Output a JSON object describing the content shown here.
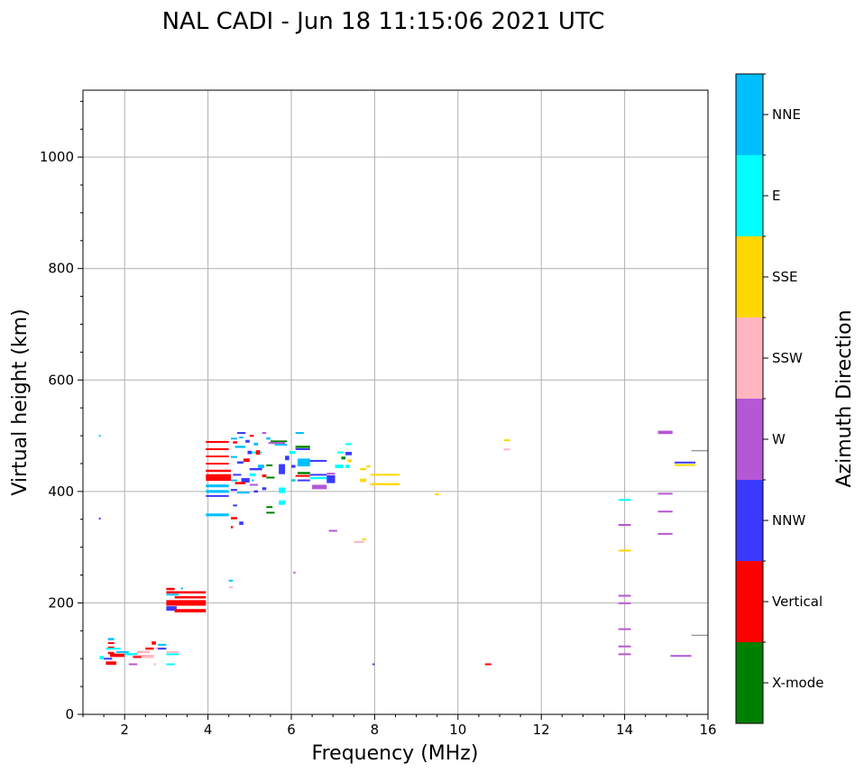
{
  "chart_data": {
    "type": "scatter",
    "title": "NAL CADI - Jun 18 11:15:06 2021 UTC",
    "xlabel": "Frequency (MHz)",
    "ylabel": "Virtual height (km)",
    "xlim": [
      1,
      16
    ],
    "ylim": [
      0,
      1120
    ],
    "xticks": [
      "2",
      "4",
      "6",
      "8",
      "10",
      "12",
      "14",
      "16"
    ],
    "yticks": [
      "0",
      "200",
      "400",
      "600",
      "800",
      "1000"
    ],
    "grid": true,
    "colorbar": {
      "label": "Azimuth Direction",
      "categories": [
        "X-mode",
        "Vertical",
        "NNW",
        "W",
        "SSW",
        "SSE",
        "E",
        "NNE"
      ],
      "colors": [
        "#008000",
        "#ff0000",
        "#3a3aff",
        "#b657d6",
        "#ffb6c1",
        "#ffd700",
        "#00ffff",
        "#00bfff"
      ]
    },
    "segments_format": "[freq_start_MHz, freq_end_MHz, height_km, height_span_km, category_index]",
    "segments": [
      [
        1.38,
        1.42,
        500,
        3,
        7
      ],
      [
        1.38,
        1.42,
        352,
        2,
        2
      ],
      [
        1.4,
        1.5,
        102,
        6,
        6
      ],
      [
        1.5,
        1.7,
        100,
        3,
        2
      ],
      [
        1.55,
        1.8,
        92,
        6,
        1
      ],
      [
        1.6,
        1.75,
        110,
        4,
        1
      ],
      [
        1.6,
        1.75,
        120,
        3,
        1
      ],
      [
        1.6,
        1.75,
        135,
        4,
        7
      ],
      [
        1.6,
        1.75,
        128,
        3,
        1
      ],
      [
        1.55,
        1.9,
        118,
        3,
        6
      ],
      [
        1.65,
        2.0,
        106,
        6,
        1
      ],
      [
        1.8,
        2.1,
        112,
        3,
        7
      ],
      [
        2.0,
        2.3,
        108,
        4,
        6
      ],
      [
        2.2,
        2.7,
        104,
        6,
        4
      ],
      [
        2.3,
        2.6,
        112,
        4,
        4
      ],
      [
        2.5,
        2.7,
        118,
        4,
        1
      ],
      [
        2.65,
        2.75,
        128,
        6,
        1
      ],
      [
        2.75,
        2.95,
        118,
        4,
        4
      ],
      [
        2.8,
        3.0,
        125,
        3,
        7
      ],
      [
        2.8,
        3.0,
        118,
        3,
        2
      ],
      [
        3.0,
        3.3,
        108,
        3,
        6
      ],
      [
        3.0,
        3.3,
        112,
        3,
        4
      ],
      [
        3.0,
        3.2,
        90,
        3,
        6
      ],
      [
        2.1,
        2.3,
        90,
        3,
        3
      ],
      [
        2.7,
        2.75,
        90,
        4,
        4
      ],
      [
        2.2,
        2.4,
        103,
        3,
        1
      ],
      [
        3.0,
        3.95,
        219,
        4,
        1
      ],
      [
        3.0,
        3.2,
        225,
        4,
        1
      ],
      [
        3.0,
        3.3,
        215,
        3,
        7
      ],
      [
        3.2,
        3.95,
        210,
        4,
        1
      ],
      [
        3.0,
        3.95,
        200,
        10,
        1
      ],
      [
        3.0,
        3.25,
        190,
        8,
        2
      ],
      [
        3.2,
        3.95,
        186,
        6,
        1
      ],
      [
        3.35,
        3.4,
        226,
        3,
        7
      ],
      [
        4.5,
        4.6,
        240,
        3,
        7
      ],
      [
        4.5,
        4.6,
        228,
        3,
        4
      ],
      [
        3.95,
        4.5,
        489,
        3,
        1
      ],
      [
        3.95,
        4.5,
        476,
        3,
        1
      ],
      [
        3.95,
        4.5,
        463,
        3,
        1
      ],
      [
        3.95,
        4.5,
        450,
        3,
        1
      ],
      [
        3.95,
        4.55,
        437,
        4,
        1
      ],
      [
        3.95,
        4.55,
        425,
        12,
        1
      ],
      [
        3.95,
        4.5,
        410,
        5,
        7
      ],
      [
        3.95,
        4.5,
        400,
        5,
        7
      ],
      [
        3.95,
        4.5,
        392,
        3,
        2
      ],
      [
        3.95,
        4.5,
        358,
        5,
        7
      ],
      [
        4.55,
        4.7,
        495,
        3,
        7
      ],
      [
        4.7,
        4.9,
        505,
        3,
        2
      ],
      [
        4.75,
        4.85,
        497,
        3,
        7
      ],
      [
        4.6,
        4.7,
        488,
        4,
        1
      ],
      [
        4.65,
        4.9,
        480,
        4,
        7
      ],
      [
        4.9,
        5.0,
        490,
        5,
        2
      ],
      [
        5.0,
        5.1,
        500,
        3,
        1
      ],
      [
        5.0,
        5.3,
        470,
        3,
        6
      ],
      [
        5.1,
        5.2,
        485,
        5,
        7
      ],
      [
        5.3,
        5.4,
        505,
        3,
        3
      ],
      [
        5.4,
        5.5,
        495,
        4,
        7
      ],
      [
        5.5,
        5.9,
        490,
        3,
        0
      ],
      [
        5.45,
        5.85,
        487,
        3,
        3
      ],
      [
        5.6,
        5.9,
        484,
        3,
        7
      ],
      [
        5.15,
        5.25,
        470,
        8,
        1
      ],
      [
        4.55,
        4.7,
        462,
        3,
        7
      ],
      [
        4.7,
        4.85,
        452,
        4,
        2
      ],
      [
        4.85,
        5.0,
        456,
        6,
        1
      ],
      [
        5.0,
        5.3,
        440,
        4,
        2
      ],
      [
        5.2,
        5.35,
        445,
        6,
        7
      ],
      [
        5.3,
        5.4,
        428,
        5,
        1
      ],
      [
        4.6,
        4.8,
        430,
        3,
        2
      ],
      [
        4.55,
        4.7,
        420,
        3,
        7
      ],
      [
        4.8,
        5.0,
        420,
        8,
        2
      ],
      [
        4.65,
        4.9,
        415,
        4,
        1
      ],
      [
        5.0,
        5.2,
        412,
        3,
        3
      ],
      [
        5.3,
        5.4,
        405,
        5,
        2
      ],
      [
        4.55,
        4.7,
        403,
        3,
        2
      ],
      [
        4.7,
        5.0,
        398,
        3,
        7
      ],
      [
        4.6,
        4.7,
        375,
        3,
        2
      ],
      [
        4.55,
        4.7,
        352,
        4,
        1
      ],
      [
        4.75,
        4.85,
        343,
        6,
        2
      ],
      [
        4.55,
        4.6,
        336,
        4,
        1
      ],
      [
        5.05,
        5.1,
        420,
        3,
        7
      ],
      [
        5.4,
        5.55,
        447,
        3,
        0
      ],
      [
        5.4,
        5.6,
        425,
        3,
        0
      ],
      [
        5.4,
        5.55,
        372,
        3,
        0
      ],
      [
        5.4,
        5.6,
        362,
        3,
        0
      ],
      [
        5.7,
        5.85,
        440,
        18,
        2
      ],
      [
        5.7,
        5.85,
        402,
        10,
        6
      ],
      [
        5.7,
        5.85,
        380,
        8,
        6
      ],
      [
        5.85,
        5.95,
        460,
        8,
        2
      ],
      [
        5.95,
        6.1,
        470,
        5,
        6
      ],
      [
        6.0,
        6.1,
        445,
        5,
        2
      ],
      [
        6.0,
        6.1,
        420,
        4,
        7
      ],
      [
        6.1,
        6.3,
        505,
        3,
        7
      ],
      [
        6.1,
        6.45,
        480,
        4,
        0
      ],
      [
        6.1,
        6.45,
        476,
        3,
        2
      ],
      [
        6.15,
        6.45,
        452,
        14,
        7
      ],
      [
        6.15,
        6.45,
        433,
        4,
        0
      ],
      [
        6.1,
        6.45,
        428,
        3,
        1
      ],
      [
        6.15,
        6.45,
        420,
        3,
        2
      ],
      [
        6.45,
        6.85,
        455,
        3,
        2
      ],
      [
        6.45,
        6.85,
        430,
        3,
        2
      ],
      [
        6.45,
        6.85,
        424,
        4,
        6
      ],
      [
        6.5,
        6.85,
        408,
        8,
        3
      ],
      [
        6.85,
        7.05,
        422,
        14,
        2
      ],
      [
        6.85,
        7.05,
        432,
        3,
        3
      ],
      [
        7.05,
        7.25,
        445,
        6,
        6
      ],
      [
        7.1,
        7.25,
        470,
        3,
        6
      ],
      [
        7.2,
        7.3,
        460,
        5,
        0
      ],
      [
        7.3,
        7.45,
        485,
        3,
        6
      ],
      [
        7.3,
        7.45,
        468,
        6,
        2
      ],
      [
        7.35,
        7.45,
        455,
        5,
        5
      ],
      [
        7.3,
        7.4,
        445,
        6,
        6
      ],
      [
        7.65,
        7.8,
        440,
        4,
        5
      ],
      [
        7.65,
        7.8,
        420,
        6,
        5
      ],
      [
        7.8,
        7.9,
        445,
        3,
        5
      ],
      [
        7.9,
        8.6,
        430,
        3,
        5
      ],
      [
        7.9,
        8.6,
        413,
        4,
        5
      ],
      [
        5.1,
        5.2,
        400,
        4,
        2
      ],
      [
        5.0,
        5.15,
        430,
        5,
        6
      ],
      [
        4.95,
        5.05,
        470,
        6,
        2
      ],
      [
        6.05,
        6.1,
        255,
        2,
        3
      ],
      [
        6.9,
        7.1,
        330,
        2,
        3
      ],
      [
        7.5,
        7.75,
        310,
        2,
        4
      ],
      [
        7.7,
        7.8,
        314,
        3,
        5
      ],
      [
        7.95,
        8.0,
        90,
        3,
        2
      ],
      [
        9.45,
        9.55,
        395,
        3,
        5
      ],
      [
        10.65,
        10.8,
        90,
        3,
        1
      ],
      [
        11.1,
        11.25,
        492,
        3,
        5
      ],
      [
        11.1,
        11.25,
        476,
        2,
        4
      ],
      [
        13.85,
        14.15,
        385,
        3,
        6
      ],
      [
        13.85,
        14.15,
        340,
        3,
        3
      ],
      [
        13.85,
        14.15,
        294,
        3,
        5
      ],
      [
        13.85,
        14.15,
        213,
        3,
        3
      ],
      [
        13.85,
        14.15,
        200,
        2,
        3
      ],
      [
        13.85,
        14.15,
        153,
        3,
        3
      ],
      [
        13.85,
        14.15,
        122,
        3,
        3
      ],
      [
        13.85,
        14.15,
        108,
        3,
        3
      ],
      [
        14.8,
        15.15,
        506,
        6,
        3
      ],
      [
        14.8,
        15.15,
        396,
        3,
        3
      ],
      [
        14.8,
        15.15,
        364,
        3,
        3
      ],
      [
        14.8,
        15.15,
        324,
        3,
        3
      ],
      [
        15.2,
        15.7,
        452,
        3,
        2
      ],
      [
        15.2,
        15.7,
        448,
        2,
        5
      ],
      [
        15.1,
        15.6,
        105,
        3,
        3
      ]
    ],
    "gray_lines": [
      [
        15.6,
        16,
        473
      ],
      [
        15.6,
        16,
        142
      ]
    ]
  }
}
